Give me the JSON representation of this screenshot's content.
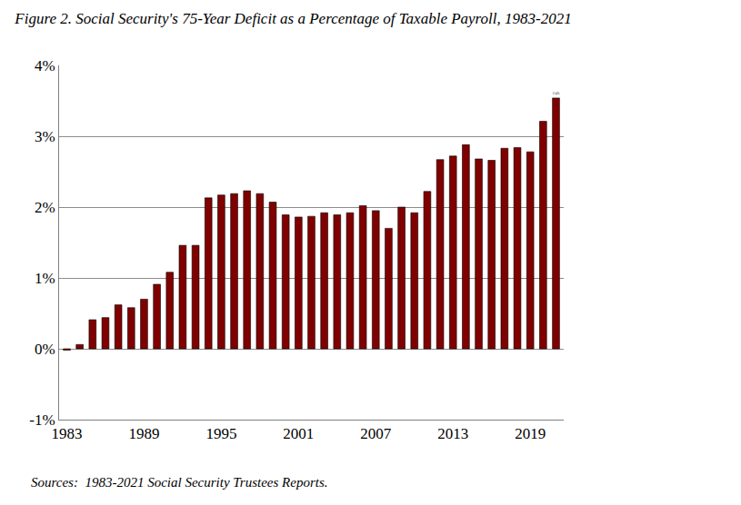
{
  "chart_data": {
    "type": "bar",
    "title": "Figure 2. Social Security's 75-Year Deficit as a Percentage of Taxable Payroll, 1983-2021",
    "source": "Sources:  1983-2021 Social Security Trustees Reports.",
    "categories": [
      "1983",
      null,
      null,
      null,
      null,
      null,
      "1989",
      null,
      null,
      null,
      null,
      null,
      "1995",
      null,
      null,
      null,
      null,
      null,
      "2001",
      null,
      null,
      null,
      null,
      null,
      "2007",
      null,
      null,
      null,
      null,
      null,
      "2013",
      null,
      null,
      null,
      null,
      null,
      "2019",
      null,
      null
    ],
    "values": [
      -0.02,
      0.06,
      0.41,
      0.44,
      0.62,
      0.58,
      0.7,
      0.91,
      1.08,
      1.46,
      1.46,
      2.13,
      2.17,
      2.19,
      2.23,
      2.19,
      2.07,
      1.89,
      1.86,
      1.87,
      1.92,
      1.89,
      1.92,
      2.02,
      1.95,
      1.7,
      2.0,
      1.92,
      2.22,
      2.67,
      2.72,
      2.88,
      2.68,
      2.66,
      2.83,
      2.84,
      2.78,
      3.21,
      3.54
    ],
    "value_labels": [
      null,
      null,
      null,
      null,
      null,
      null,
      null,
      null,
      null,
      null,
      null,
      null,
      null,
      null,
      null,
      null,
      null,
      null,
      null,
      null,
      null,
      null,
      null,
      null,
      null,
      null,
      null,
      null,
      null,
      null,
      null,
      null,
      null,
      null,
      null,
      null,
      null,
      null,
      "3.54%"
    ],
    "color": "#800000",
    "ylim": [
      -1,
      4
    ],
    "yticks": [
      {
        "value": -1,
        "label": "-1%"
      },
      {
        "value": 0,
        "label": "0%"
      },
      {
        "value": 1,
        "label": "1%"
      },
      {
        "value": 2,
        "label": "2%"
      },
      {
        "value": 3,
        "label": "3%"
      },
      {
        "value": 4,
        "label": "4%"
      }
    ],
    "grid": true
  }
}
